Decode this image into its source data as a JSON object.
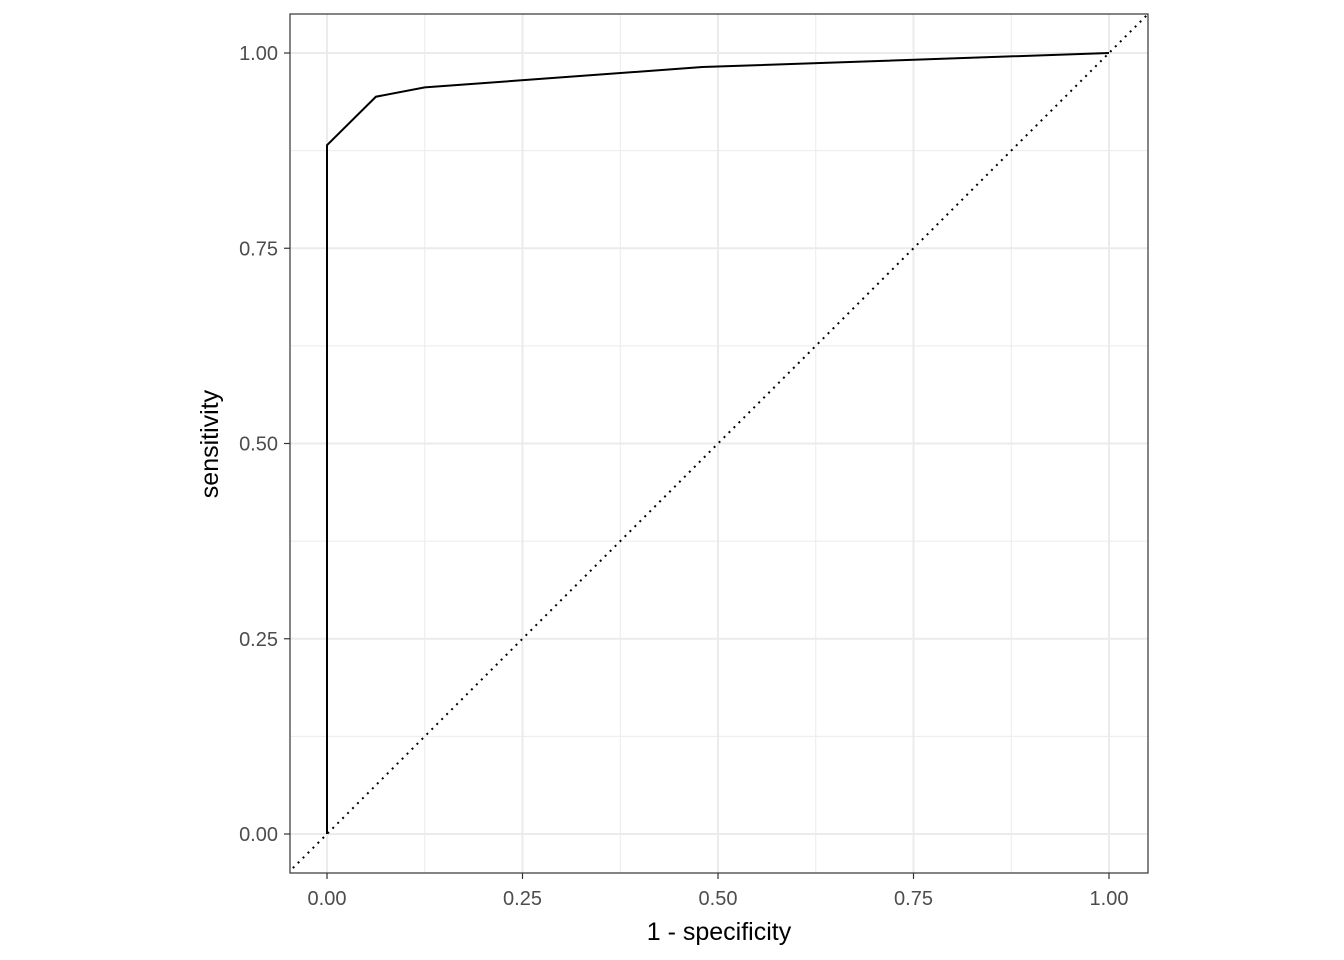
{
  "chart_data": {
    "type": "line",
    "title": "",
    "xlabel": "1 - specificity",
    "ylabel": "sensitivity",
    "xlim": [
      -0.048,
      1.05
    ],
    "ylim": [
      -0.05,
      1.05
    ],
    "grid": true,
    "x_ticks": [
      "0.00",
      "0.25",
      "0.50",
      "0.75",
      "1.00"
    ],
    "y_ticks": [
      "0.00",
      "0.25",
      "0.50",
      "0.75",
      "1.00"
    ],
    "series": [
      {
        "style": "solid",
        "color": "#000000",
        "x": [
          0,
          0,
          0.0625,
          0.125,
          0.48,
          1
        ],
        "y": [
          0,
          0.882,
          0.944,
          0.956,
          0.982,
          1
        ]
      }
    ],
    "reference_line": {
      "style": "dotted",
      "color": "#000000",
      "x": [
        -0.05,
        1.05
      ],
      "y": [
        -0.05,
        1.05
      ]
    }
  }
}
